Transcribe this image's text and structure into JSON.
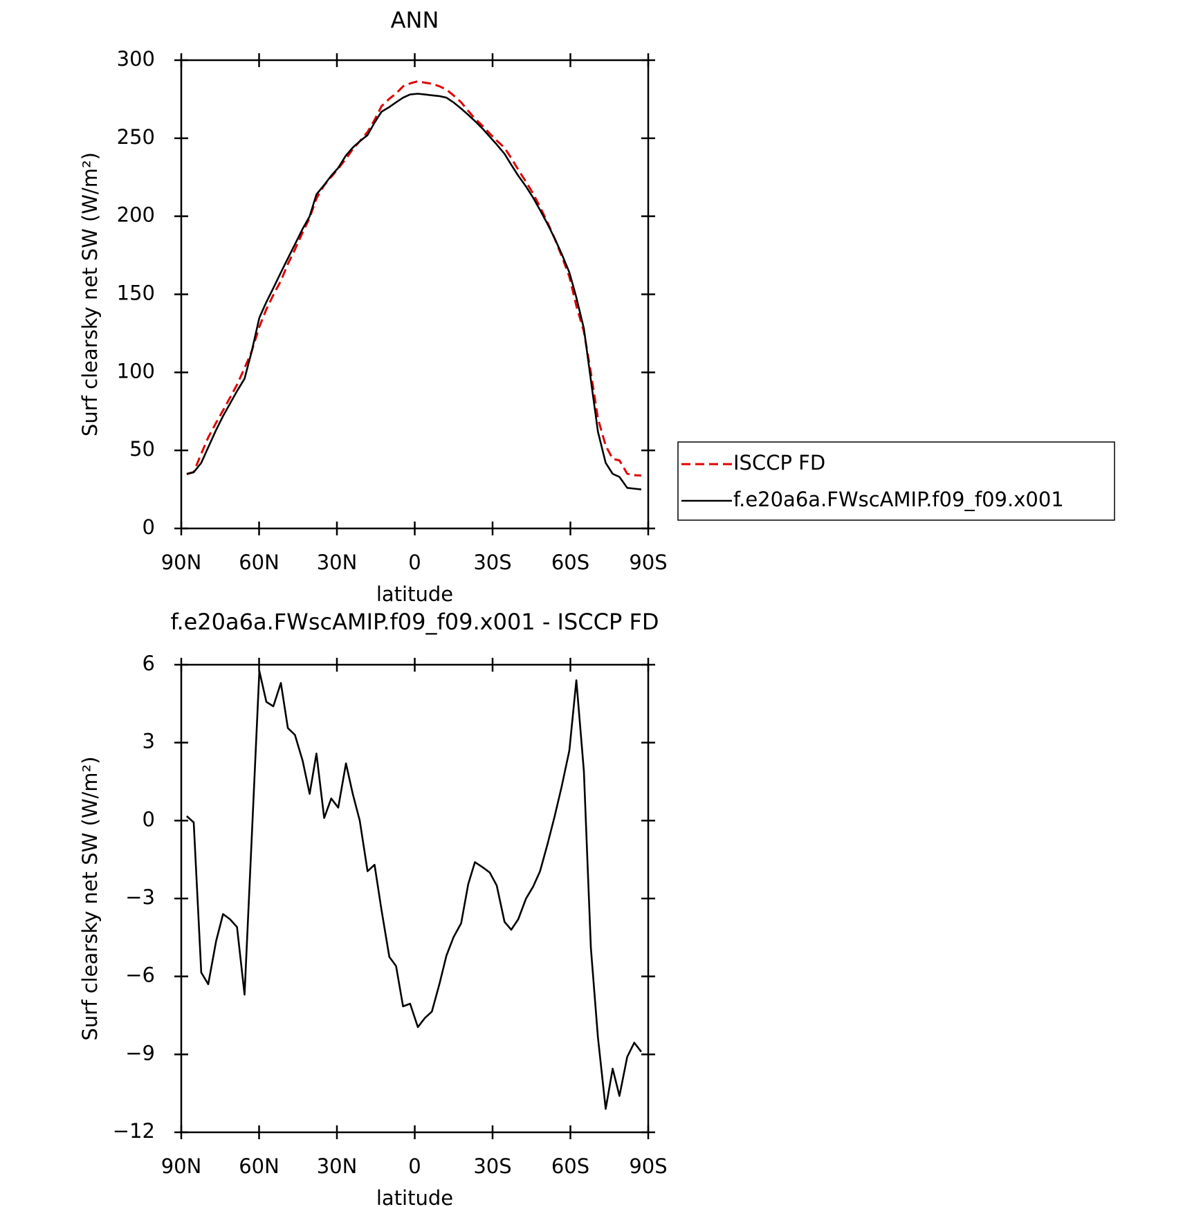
{
  "chart_data": [
    {
      "type": "line",
      "title": "ANN",
      "xlabel": "latitude",
      "ylabel": "Surf clearsky net SW (W/m²)",
      "x": [
        87.9,
        85.2,
        82.3,
        79.6,
        76.6,
        73.9,
        71.2,
        68.5,
        65.6,
        62.9,
        59.9,
        57.2,
        54.5,
        51.6,
        48.9,
        46.2,
        43.2,
        40.5,
        37.9,
        34.9,
        32.2,
        29.5,
        26.5,
        23.9,
        21.2,
        18.2,
        15.5,
        12.8,
        9.8,
        7.2,
        4.5,
        1.8,
        -1.2,
        -3.9,
        -6.6,
        -9.5,
        -12.2,
        -14.9,
        -17.9,
        -20.6,
        -23.2,
        -26.2,
        -28.9,
        -31.6,
        -34.6,
        -37.2,
        -39.9,
        -42.9,
        -45.6,
        -48.3,
        -51.2,
        -53.9,
        -56.6,
        -59.6,
        -62.3,
        -65.2,
        -67.9,
        -70.6,
        -73.6,
        -76.3,
        -78.9,
        -81.9,
        -84.6,
        -87.3
      ],
      "series": [
        {
          "name": "ISCCP FD",
          "color": "#e00000",
          "dash": true,
          "values": [
            34.8,
            36.1,
            47.9,
            58.3,
            67.7,
            75.6,
            83.8,
            92.1,
            102.7,
            113.2,
            129.2,
            140.4,
            149.6,
            158.7,
            169.4,
            178.7,
            189.7,
            199.0,
            211.4,
            219.9,
            225.2,
            230.5,
            236.8,
            243.0,
            248.0,
            254.0,
            261.7,
            270.5,
            275.3,
            278.6,
            283.2,
            285.1,
            286.5,
            285.6,
            284.9,
            283.3,
            281.2,
            277.5,
            273.0,
            267.5,
            262.6,
            257.8,
            253.0,
            248.5,
            243.9,
            237.2,
            229.8,
            222.0,
            214.6,
            206.0,
            195.9,
            185.9,
            174.7,
            161.3,
            142.6,
            126.1,
            99.9,
            70.4,
            53.1,
            44.6,
            43.6,
            35.1,
            34.1,
            33.9
          ]
        },
        {
          "name": "f.e20a6a.FWscAMIP.f09_f09.x001",
          "color": "#000000",
          "dash": false,
          "values": [
            35,
            36,
            42,
            52,
            63,
            72,
            80,
            88,
            96,
            113,
            135,
            145,
            154,
            164,
            173,
            182,
            192,
            200,
            214,
            220,
            226,
            231,
            239,
            244,
            248,
            252,
            260,
            267,
            270,
            273,
            276,
            278,
            278.5,
            278,
            277.5,
            277,
            276,
            273,
            269,
            265,
            261,
            256,
            251,
            246,
            240,
            233,
            226,
            219,
            212,
            204,
            195,
            186,
            176,
            164,
            148,
            128,
            95,
            62,
            42,
            35,
            33,
            26,
            25.5,
            25
          ]
        }
      ],
      "xlim": [
        90,
        -90
      ],
      "xticks": [
        {
          "value": 90,
          "label": "90N"
        },
        {
          "value": 60,
          "label": "60N"
        },
        {
          "value": 30,
          "label": "30N"
        },
        0,
        {
          "value": -30,
          "label": "30S"
        },
        {
          "value": -60,
          "label": "60S"
        },
        {
          "value": -90,
          "label": "90S"
        }
      ],
      "ylim": [
        0,
        300
      ],
      "yticks": [
        0,
        50,
        100,
        150,
        200,
        250,
        300
      ],
      "legend": "right"
    },
    {
      "type": "line",
      "title": "f.e20a6a.FWscAMIP.f09_f09.x001 - ISCCP FD",
      "xlabel": "latitude",
      "ylabel": "Surf clearsky net SW (W/m²)",
      "x": [
        87.9,
        85.2,
        82.3,
        79.6,
        76.6,
        73.9,
        71.2,
        68.5,
        65.6,
        59.9,
        57.2,
        54.5,
        51.6,
        48.9,
        46.2,
        43.2,
        40.5,
        37.9,
        34.9,
        32.2,
        29.5,
        26.5,
        23.9,
        21.2,
        18.2,
        15.5,
        12.8,
        9.8,
        7.2,
        4.5,
        1.8,
        -1.2,
        -3.9,
        -6.6,
        -9.5,
        -12.2,
        -14.9,
        -17.9,
        -20.6,
        -23.2,
        -26.2,
        -28.9,
        -31.6,
        -34.6,
        -37.2,
        -39.9,
        -42.9,
        -45.6,
        -48.3,
        -51.2,
        -53.9,
        -56.6,
        -59.6,
        -62.3,
        -65.2,
        -67.9,
        -70.6,
        -73.6,
        -76.3,
        -78.9,
        -81.9,
        -84.6,
        -87.3
      ],
      "series": [
        {
          "color": "#000000",
          "dash": false,
          "values": [
            0.17,
            -0.07,
            -5.85,
            -6.3,
            -4.65,
            -3.6,
            -3.8,
            -4.1,
            -6.7,
            5.76,
            4.57,
            4.4,
            5.3,
            3.56,
            3.3,
            2.3,
            1.03,
            2.58,
            0.1,
            0.85,
            0.5,
            2.2,
            1.03,
            0.0,
            -1.95,
            -1.7,
            -3.45,
            -5.25,
            -5.6,
            -7.15,
            -7.05,
            -7.95,
            -7.6,
            -7.35,
            -6.3,
            -5.2,
            -4.5,
            -3.95,
            -2.45,
            -1.6,
            -1.8,
            -2.0,
            -2.5,
            -3.9,
            -4.2,
            -3.8,
            -3.0,
            -2.55,
            -1.95,
            -0.9,
            0.15,
            1.3,
            2.7,
            5.4,
            1.9,
            -4.9,
            -8.35,
            -11.1,
            -9.55,
            -10.6,
            -9.1,
            -8.55,
            -8.9
          ]
        }
      ],
      "xlim": [
        90,
        -90
      ],
      "xticks": [
        {
          "value": 90,
          "label": "90N"
        },
        {
          "value": 60,
          "label": "60N"
        },
        {
          "value": 30,
          "label": "30N"
        },
        0,
        {
          "value": -30,
          "label": "30S"
        },
        {
          "value": -60,
          "label": "60S"
        },
        {
          "value": -90,
          "label": "90S"
        }
      ],
      "ylim": [
        -12,
        6
      ],
      "yticks": [
        {
          "value": -12,
          "label": "−12"
        },
        {
          "value": -9,
          "label": "−9"
        },
        {
          "value": -6,
          "label": "−6"
        },
        {
          "value": -3,
          "label": "−3"
        },
        0,
        3,
        6
      ]
    }
  ]
}
